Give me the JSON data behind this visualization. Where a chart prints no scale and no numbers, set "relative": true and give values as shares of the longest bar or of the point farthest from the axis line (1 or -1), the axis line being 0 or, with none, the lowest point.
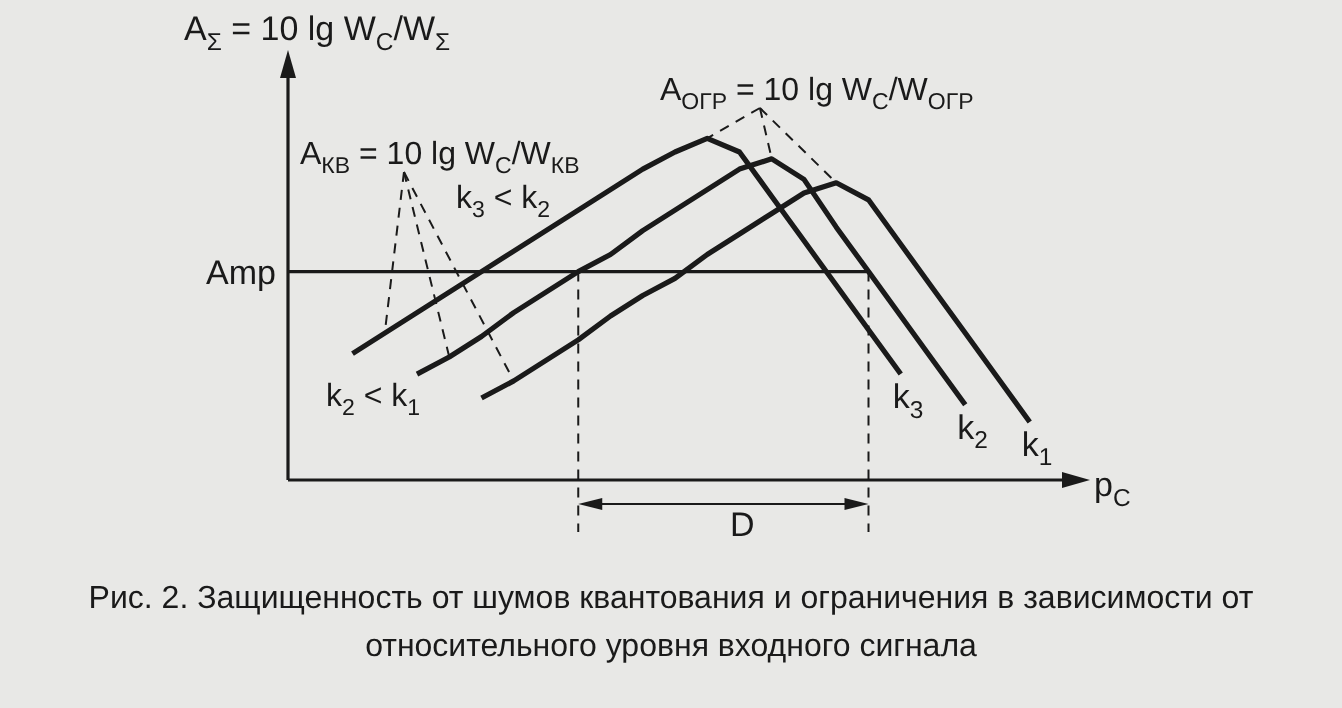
{
  "chart_data": {
    "type": "line",
    "relative": true,
    "title": "Рис. 2. Защищенность от шумов квантования и ограничения в зависимости от относительного уровня входного сигнала",
    "xlabel": "p$_{C}$",
    "ylabel": "A$_{Σ}$ = 10 lg W$_{C}$/W$_{Σ}$",
    "tick_labels": false,
    "marker": "none",
    "categories": [
      null,
      null,
      null,
      null,
      null,
      null,
      null,
      null,
      null,
      null,
      null,
      null,
      null,
      null,
      null,
      null,
      null,
      null,
      null,
      null,
      null,
      null,
      null,
      null,
      null
    ],
    "series": [
      {
        "name": "k$_{3}$",
        "color": "#1a1a1a",
        "values": [
          null,
          null,
          0.37,
          0.43,
          0.49,
          0.55,
          0.61,
          0.67,
          0.73,
          0.79,
          0.85,
          0.91,
          0.96,
          1.0,
          0.96,
          0.83,
          0.7,
          0.57,
          0.44,
          0.31,
          null,
          null,
          null,
          null,
          null
        ]
      },
      {
        "name": "k$_{2}$",
        "color": "#1a1a1a",
        "values": [
          null,
          null,
          null,
          null,
          0.31,
          0.36,
          0.42,
          0.49,
          0.55,
          0.61,
          0.66,
          0.73,
          0.79,
          0.85,
          0.91,
          0.94,
          0.88,
          0.74,
          0.61,
          0.48,
          0.35,
          0.22,
          null,
          null,
          null
        ]
      },
      {
        "name": "k$_{1}$",
        "color": "#1a1a1a",
        "values": [
          null,
          null,
          null,
          null,
          null,
          null,
          0.24,
          0.29,
          0.35,
          0.41,
          0.48,
          0.54,
          0.59,
          0.66,
          0.72,
          0.78,
          0.84,
          0.87,
          0.82,
          0.69,
          0.56,
          0.43,
          0.3,
          0.17,
          null
        ]
      }
    ],
    "ref_lines": [
      {
        "axis": "y",
        "value": 0.61,
        "label": "Amp"
      }
    ],
    "annotations": [
      "A$_{КВ}$ = 10 lg W$_{C}$/W$_{КВ}$",
      "A$_{ОГР}$ = 10 lg W$_{C}$/W$_{ОГР}$",
      "k$_{3}$ < k$_{2}$",
      "k$_{2}$ < k$_{1}$",
      "D"
    ]
  }
}
